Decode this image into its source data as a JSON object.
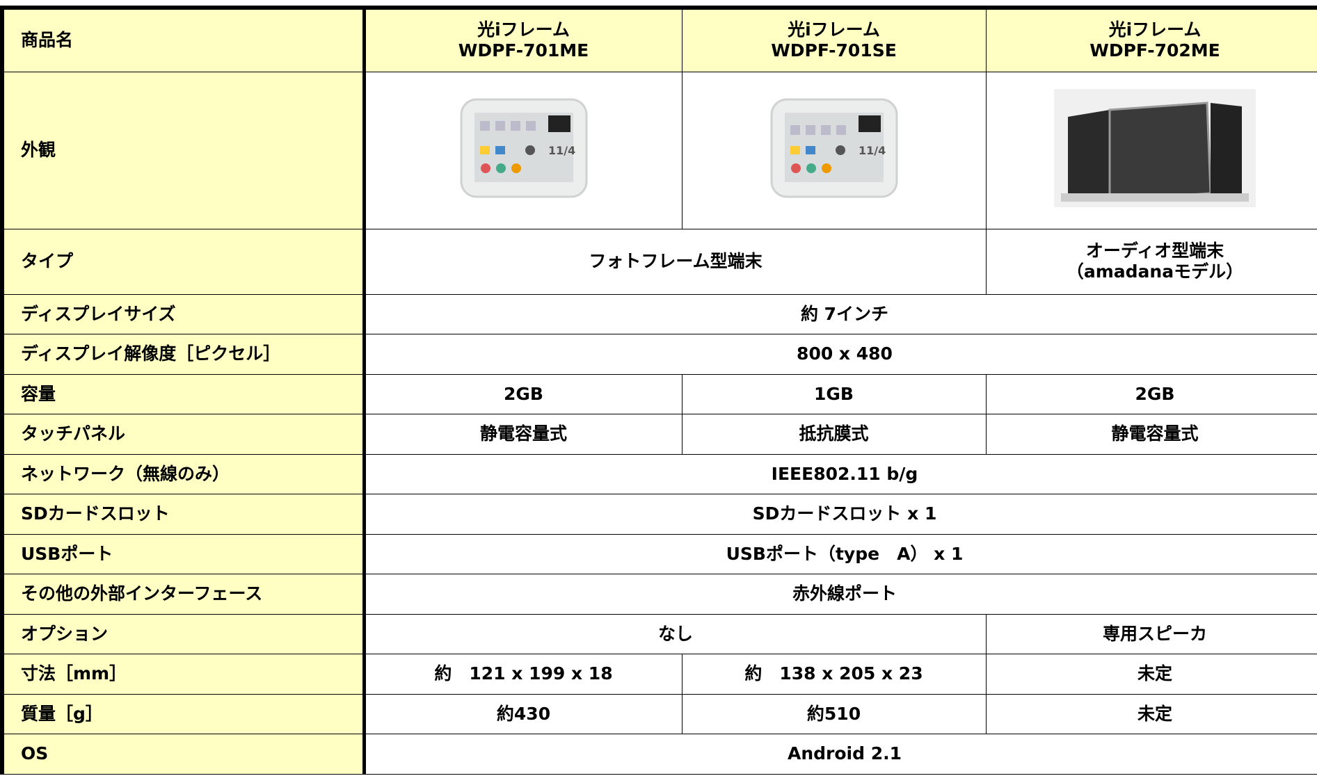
{
  "header": {
    "label": "商品名",
    "products": [
      {
        "name": "光iフレーム",
        "model": "WDPF-701ME"
      },
      {
        "name": "光iフレーム",
        "model": "WDPF-701SE"
      },
      {
        "name": "光iフレーム",
        "model": "WDPF-702ME"
      }
    ]
  },
  "appearance": {
    "label": "外観"
  },
  "rows": [
    {
      "label": "タイプ",
      "cells": [
        "フォトフレーム型端末",
        [
          "オーディオ型端末",
          "（amadanaモデル）"
        ]
      ]
    },
    {
      "label": "ディスプレイサイズ",
      "cells": [
        "約 7インチ"
      ]
    },
    {
      "label": "ディスプレイ解像度［ピクセル］",
      "cells": [
        "800 x 480"
      ]
    },
    {
      "label": "容量",
      "cells": [
        "2GB",
        "1GB",
        "2GB"
      ]
    },
    {
      "label": "タッチパネル",
      "cells": [
        "静電容量式",
        "抵抗膜式",
        "静電容量式"
      ]
    },
    {
      "label": "ネットワーク（無線のみ）",
      "cells": [
        "IEEE802.11 b/g"
      ]
    },
    {
      "label": "SDカードスロット",
      "cells": [
        "SDカードスロット x 1"
      ]
    },
    {
      "label": "USBポート",
      "cells": [
        "USBポート（type　A） x 1"
      ]
    },
    {
      "label": "その他の外部インターフェース",
      "cells": [
        "赤外線ポート"
      ]
    },
    {
      "label": "オプション",
      "cells": [
        "なし",
        "専用スピーカ"
      ]
    },
    {
      "label": "寸法［mm］",
      "cells": [
        "約　121 x 199 x 18",
        "約　138 x 205 x 23",
        "未定"
      ]
    },
    {
      "label": "質量［g］",
      "cells": [
        "約430",
        "約510",
        "未定"
      ]
    },
    {
      "label": "OS",
      "cells": [
        "Android 2.1"
      ]
    }
  ]
}
